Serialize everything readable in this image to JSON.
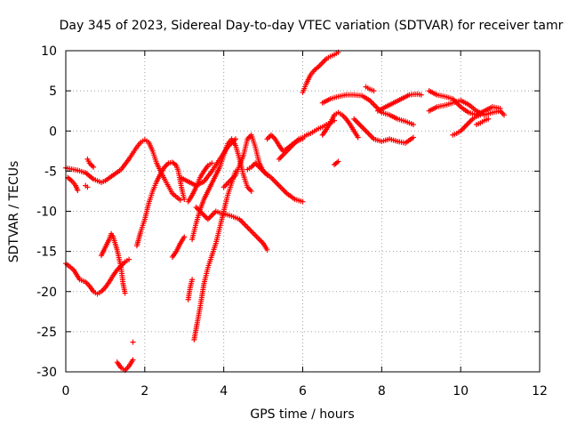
{
  "chart_data": {
    "type": "scatter",
    "title": "Day 345 of 2023, Sidereal Day-to-day VTEC variation (SDTVAR) for receiver tamr",
    "xlabel": "GPS time / hours",
    "ylabel": "SDTVAR / TECUs",
    "xlim": [
      0,
      12
    ],
    "ylim": [
      -30,
      10
    ],
    "xticks": [
      "0",
      "2",
      "4",
      "6",
      "8",
      "10",
      "12"
    ],
    "yticks": [
      "-30",
      "-25",
      "-20",
      "-15",
      "-10",
      "-5",
      "0",
      "5",
      "10"
    ],
    "grid": true,
    "marker": "+",
    "color": "#ff0000",
    "series": [
      {
        "x": [
          0.0,
          0.2,
          0.3,
          0.5,
          0.6,
          0.7,
          0.8,
          0.9,
          1.0,
          1.2,
          1.4,
          1.6,
          1.8,
          1.9,
          2.0,
          2.1,
          2.2,
          2.3,
          2.5,
          2.7,
          2.9
        ],
        "y": [
          -4.6,
          -4.8,
          -4.9,
          -5.2,
          -5.6,
          -6.0,
          -6.2,
          -6.4,
          -6.2,
          -5.5,
          -4.8,
          -3.5,
          -2.0,
          -1.4,
          -1.1,
          -1.4,
          -2.5,
          -4.0,
          -6.0,
          -7.8,
          -8.6
        ]
      },
      {
        "x": [
          0.0,
          0.2,
          0.35,
          0.5,
          0.6,
          0.7,
          0.8,
          0.9,
          1.0,
          1.1,
          1.2,
          1.3,
          1.4,
          1.5,
          1.6
        ],
        "y": [
          -16.5,
          -17.3,
          -18.5,
          -18.8,
          -19.3,
          -20.0,
          -20.3,
          -20.0,
          -19.5,
          -18.8,
          -18.0,
          -17.3,
          -16.8,
          -16.3,
          -16.0
        ]
      },
      {
        "x": [
          0.05,
          0.15,
          0.25,
          0.3
        ],
        "y": [
          -5.8,
          -6.2,
          -6.8,
          -7.4
        ]
      },
      {
        "x": [
          0.5,
          0.55
        ],
        "y": [
          -6.8,
          -7.0
        ]
      },
      {
        "x": [
          0.55,
          0.6,
          0.7
        ],
        "y": [
          -3.5,
          -4.0,
          -4.5
        ]
      },
      {
        "x": [
          0.9,
          1.0,
          1.1,
          1.15,
          1.2,
          1.3,
          1.4,
          1.45,
          1.5
        ],
        "y": [
          -15.5,
          -14.5,
          -13.5,
          -12.8,
          -13.2,
          -14.8,
          -17.0,
          -19.0,
          -20.2
        ]
      },
      {
        "x": [
          1.3,
          1.4,
          1.5,
          1.6,
          1.7
        ],
        "y": [
          -28.8,
          -29.5,
          -29.8,
          -29.3,
          -28.5
        ]
      },
      {
        "x": [
          1.7
        ],
        "y": [
          -26.3
        ]
      },
      {
        "x": [
          1.8,
          1.9,
          2.0,
          2.1,
          2.2,
          2.3,
          2.4,
          2.5,
          2.6,
          2.7,
          2.8,
          2.85,
          2.9,
          2.95,
          3.0
        ],
        "y": [
          -14.3,
          -12.5,
          -11.0,
          -9.0,
          -7.5,
          -6.3,
          -5.3,
          -4.5,
          -4.0,
          -3.9,
          -4.3,
          -5.0,
          -6.3,
          -7.5,
          -8.5
        ]
      },
      {
        "x": [
          2.7,
          2.8,
          2.9,
          3.0
        ],
        "y": [
          -15.7,
          -15.0,
          -14.0,
          -13.2
        ]
      },
      {
        "x": [
          3.1,
          3.15,
          3.2
        ],
        "y": [
          -21.0,
          -19.5,
          -18.5
        ]
      },
      {
        "x": [
          2.9,
          3.1,
          3.3,
          3.5,
          3.7,
          3.9,
          4.1,
          4.3
        ],
        "y": [
          -5.8,
          -6.3,
          -6.8,
          -6.3,
          -5.0,
          -3.5,
          -2.0,
          -1.0
        ]
      },
      {
        "x": [
          3.1,
          3.2,
          3.3,
          3.4,
          3.5,
          3.6,
          3.7
        ],
        "y": [
          -8.8,
          -8.0,
          -7.0,
          -5.8,
          -5.0,
          -4.3,
          -4.0
        ]
      },
      {
        "x": [
          3.2,
          3.3,
          3.4,
          3.5,
          3.6,
          3.7,
          3.8,
          3.9,
          4.0,
          4.1,
          4.2,
          4.3,
          4.4,
          4.5,
          4.6,
          4.7
        ],
        "y": [
          -13.5,
          -11.5,
          -9.8,
          -8.5,
          -7.5,
          -6.5,
          -5.5,
          -4.5,
          -3.0,
          -1.6,
          -1.0,
          -1.8,
          -3.5,
          -5.5,
          -7.0,
          -7.5
        ]
      },
      {
        "x": [
          3.3,
          3.4,
          3.5,
          3.6,
          3.7,
          3.8,
          3.9,
          4.0,
          4.2,
          4.4,
          4.6,
          4.8,
          5.0,
          5.1
        ],
        "y": [
          -9.5,
          -10.0,
          -10.5,
          -11.0,
          -10.5,
          -10.0,
          -10.2,
          -10.3,
          -10.6,
          -11.0,
          -12.0,
          -13.0,
          -14.0,
          -14.8
        ]
      },
      {
        "x": [
          3.25,
          3.4,
          3.5,
          3.6,
          3.7,
          3.8,
          3.9,
          4.0,
          4.1,
          4.2,
          4.3
        ],
        "y": [
          -26.0,
          -22.0,
          -19.0,
          -17.0,
          -15.5,
          -14.0,
          -12.0,
          -10.0,
          -8.0,
          -6.5,
          -5.0
        ]
      },
      {
        "x": [
          4.0,
          4.1,
          4.2,
          4.3,
          4.4,
          4.5,
          4.6,
          4.7,
          4.8,
          4.9,
          5.0,
          5.1
        ],
        "y": [
          -7.0,
          -6.5,
          -6.0,
          -5.5,
          -4.3,
          -3.0,
          -1.0,
          -0.5,
          -2.0,
          -4.0,
          -5.0,
          -5.5
        ]
      },
      {
        "x": [
          4.6,
          4.7,
          4.8,
          4.9,
          5.0,
          5.2,
          5.4,
          5.6,
          5.8,
          6.0
        ],
        "y": [
          -4.8,
          -4.5,
          -4.0,
          -4.5,
          -5.0,
          -5.8,
          -6.8,
          -7.8,
          -8.5,
          -8.8
        ]
      },
      {
        "x": [
          5.1,
          5.2,
          5.3,
          5.4,
          5.5,
          5.6,
          5.7,
          5.8,
          5.9,
          6.0
        ],
        "y": [
          -1.0,
          -0.5,
          -1.0,
          -1.8,
          -2.5,
          -2.2,
          -1.8,
          -1.4,
          -1.2,
          -1.0
        ]
      },
      {
        "x": [
          5.4,
          5.5,
          5.6,
          5.7,
          5.8,
          5.9,
          6.0,
          6.1,
          6.2,
          6.3,
          6.4,
          6.5,
          6.6,
          6.7,
          6.8
        ],
        "y": [
          -3.5,
          -3.0,
          -2.5,
          -2.0,
          -1.5,
          -1.0,
          -0.8,
          -0.5,
          -0.3,
          0.0,
          0.3,
          0.5,
          0.8,
          1.0,
          1.3
        ]
      },
      {
        "x": [
          6.0,
          6.1,
          6.2,
          6.3,
          6.4,
          6.5,
          6.6,
          6.7,
          6.8,
          6.9
        ],
        "y": [
          4.8,
          6.0,
          7.0,
          7.6,
          8.0,
          8.5,
          9.0,
          9.3,
          9.5,
          9.8
        ]
      },
      {
        "x": [
          6.5,
          6.7,
          6.9,
          7.1,
          7.3,
          7.5,
          7.7,
          7.9,
          8.0,
          8.2,
          8.4,
          8.6,
          8.8
        ],
        "y": [
          3.5,
          4.0,
          4.3,
          4.5,
          4.5,
          4.4,
          3.8,
          2.8,
          2.3,
          2.0,
          1.5,
          1.2,
          0.8
        ]
      },
      {
        "x": [
          6.5,
          6.6,
          6.7,
          6.8,
          6.9,
          7.0,
          7.1,
          7.2,
          7.3,
          7.4
        ],
        "y": [
          -0.5,
          0.2,
          1.0,
          2.0,
          2.3,
          2.0,
          1.5,
          0.8,
          0.0,
          -0.8
        ]
      },
      {
        "x": [
          6.8,
          6.9
        ],
        "y": [
          -4.2,
          -3.8
        ]
      },
      {
        "x": [
          7.3,
          7.4,
          7.5,
          7.6,
          7.7,
          7.8,
          8.0,
          8.2,
          8.4,
          8.6,
          8.8
        ],
        "y": [
          1.5,
          1.0,
          0.5,
          0.0,
          -0.5,
          -1.0,
          -1.3,
          -1.0,
          -1.3,
          -1.5,
          -0.8
        ]
      },
      {
        "x": [
          7.6,
          7.7,
          7.8
        ],
        "y": [
          5.5,
          5.2,
          5.0
        ]
      },
      {
        "x": [
          7.9,
          8.1,
          8.3,
          8.5,
          8.7,
          8.9,
          9.0
        ],
        "y": [
          2.5,
          3.0,
          3.5,
          4.0,
          4.5,
          4.6,
          4.5
        ]
      },
      {
        "x": [
          9.2,
          9.4,
          9.6,
          9.8,
          10.0,
          10.2,
          10.4,
          10.6,
          10.8,
          11.0
        ],
        "y": [
          5.0,
          4.5,
          4.3,
          4.0,
          3.0,
          2.3,
          2.0,
          2.5,
          3.0,
          2.8
        ]
      },
      {
        "x": [
          9.2,
          9.4,
          9.6,
          9.8,
          10.0,
          10.2,
          10.4,
          10.6,
          10.8,
          11.0,
          11.1
        ],
        "y": [
          2.5,
          3.0,
          3.2,
          3.5,
          3.8,
          3.3,
          2.5,
          2.0,
          2.3,
          2.5,
          2.0
        ]
      },
      {
        "x": [
          9.8,
          9.9,
          10.0,
          10.1,
          10.2,
          10.3,
          10.4,
          10.5
        ],
        "y": [
          -0.5,
          -0.3,
          0.0,
          0.5,
          1.0,
          1.5,
          1.8,
          2.0
        ]
      },
      {
        "x": [
          10.4,
          10.5,
          10.6,
          10.7
        ],
        "y": [
          0.8,
          1.0,
          1.3,
          1.5
        ]
      }
    ]
  }
}
